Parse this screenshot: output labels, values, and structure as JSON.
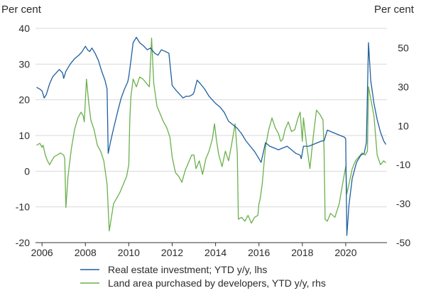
{
  "chart_data": {
    "type": "line",
    "left_axis": {
      "label": "Per cent",
      "ylim": [
        -20,
        40
      ],
      "ticks": [
        -20,
        -10,
        0,
        10,
        20,
        30,
        40
      ]
    },
    "right_axis": {
      "label": "Per cent",
      "ylim": [
        -50,
        60
      ],
      "ticks": [
        -50,
        -30,
        -10,
        10,
        30,
        50
      ]
    },
    "x_axis": {
      "xlim": [
        2005.7,
        2021.9
      ],
      "ticks": [
        "2006",
        "2008",
        "2010",
        "2012",
        "2014",
        "2016",
        "2018",
        "2020"
      ]
    },
    "grid": true,
    "legend_position": "bottom",
    "series": [
      {
        "name": "Real estate investment; YTD y/y, lhs",
        "axis": "left",
        "color": "#1f5f9e",
        "x": [
          2005.75,
          2005.9,
          2006.0,
          2006.1,
          2006.2,
          2006.35,
          2006.5,
          2006.65,
          2006.8,
          2006.95,
          2007.0,
          2007.1,
          2007.3,
          2007.5,
          2007.7,
          2007.85,
          2008.0,
          2008.1,
          2008.2,
          2008.3,
          2008.45,
          2008.6,
          2008.75,
          2008.9,
          2009.0,
          2009.05,
          2009.15,
          2009.3,
          2009.5,
          2009.65,
          2009.8,
          2009.95,
          2010.0,
          2010.1,
          2010.2,
          2010.35,
          2010.5,
          2010.7,
          2010.85,
          2011.0,
          2011.2,
          2011.35,
          2011.5,
          2011.7,
          2011.85,
          2012.0,
          2012.2,
          2012.35,
          2012.5,
          2012.65,
          2012.8,
          2012.95,
          2013.0,
          2013.15,
          2013.3,
          2013.5,
          2013.7,
          2013.85,
          2014.0,
          2014.2,
          2014.4,
          2014.6,
          2014.8,
          2015.0,
          2015.2,
          2015.4,
          2015.6,
          2015.8,
          2015.95,
          2016.1,
          2016.3,
          2016.5,
          2016.7,
          2016.9,
          2017.1,
          2017.3,
          2017.5,
          2017.7,
          2017.9,
          2017.95,
          2018.05,
          2018.3,
          2018.5,
          2018.7,
          2018.9,
          2019.0,
          2019.15,
          2019.35,
          2019.55,
          2019.75,
          2019.95,
          2020.0,
          2020.05,
          2020.15,
          2020.3,
          2020.5,
          2020.7,
          2020.85,
          2020.95,
          2021.05,
          2021.15,
          2021.3,
          2021.45,
          2021.6,
          2021.75,
          2021.85
        ],
        "values": [
          23.5,
          23.0,
          22.5,
          20.5,
          21.5,
          24.5,
          26.5,
          27.5,
          28.5,
          27.5,
          26.0,
          28.0,
          30.0,
          31.5,
          32.5,
          33.5,
          35.0,
          34.0,
          33.5,
          34.5,
          33.0,
          31.0,
          28.0,
          25.5,
          23.0,
          5.0,
          8.0,
          12.0,
          17.0,
          20.5,
          23.0,
          25.0,
          26.5,
          31.0,
          36.0,
          37.5,
          36.0,
          35.0,
          34.0,
          34.5,
          33.0,
          32.5,
          34.0,
          33.5,
          33.0,
          24.0,
          22.5,
          21.5,
          20.5,
          21.0,
          21.0,
          21.5,
          22.0,
          25.5,
          24.5,
          23.0,
          21.0,
          20.0,
          19.0,
          18.0,
          16.5,
          14.0,
          13.0,
          12.0,
          10.5,
          8.5,
          7.0,
          5.5,
          4.0,
          2.5,
          8.0,
          7.0,
          6.5,
          6.0,
          6.5,
          7.0,
          6.0,
          5.0,
          4.5,
          3.5,
          7.0,
          7.0,
          7.5,
          8.0,
          8.5,
          8.5,
          11.5,
          11.0,
          10.5,
          10.0,
          9.5,
          9.0,
          -18.0,
          -9.5,
          -2.0,
          2.5,
          4.5,
          5.0,
          8.0,
          36.0,
          25.5,
          19.0,
          14.5,
          11.0,
          8.5,
          7.5
        ]
      },
      {
        "name": "Land area purchased by developers, YTD y/y, rhs",
        "axis": "right",
        "color": "#6ab04c",
        "x": [
          2005.75,
          2005.9,
          2006.0,
          2006.05,
          2006.15,
          2006.25,
          2006.35,
          2006.45,
          2006.55,
          2006.7,
          2006.85,
          2007.0,
          2007.05,
          2007.1,
          2007.2,
          2007.35,
          2007.5,
          2007.65,
          2007.8,
          2007.9,
          2007.95,
          2008.05,
          2008.15,
          2008.25,
          2008.4,
          2008.55,
          2008.7,
          2008.85,
          2009.0,
          2009.1,
          2009.2,
          2009.3,
          2009.45,
          2009.6,
          2009.75,
          2009.9,
          2010.0,
          2010.05,
          2010.1,
          2010.2,
          2010.35,
          2010.5,
          2010.65,
          2010.8,
          2010.95,
          2011.05,
          2011.15,
          2011.3,
          2011.45,
          2011.6,
          2011.75,
          2011.9,
          2012.0,
          2012.15,
          2012.3,
          2012.45,
          2012.6,
          2012.75,
          2012.9,
          2013.0,
          2013.1,
          2013.25,
          2013.4,
          2013.55,
          2013.7,
          2013.85,
          2013.95,
          2014.05,
          2014.15,
          2014.3,
          2014.45,
          2014.6,
          2014.75,
          2014.9,
          2015.0,
          2015.05,
          2015.2,
          2015.35,
          2015.5,
          2015.65,
          2015.8,
          2015.95,
          2016.0,
          2016.05,
          2016.15,
          2016.3,
          2016.45,
          2016.6,
          2016.75,
          2016.9,
          2017.0,
          2017.1,
          2017.2,
          2017.35,
          2017.5,
          2017.65,
          2017.8,
          2017.9,
          2018.0,
          2018.05,
          2018.2,
          2018.35,
          2018.5,
          2018.65,
          2018.8,
          2018.95,
          2019.0,
          2019.05,
          2019.15,
          2019.3,
          2019.5,
          2019.7,
          2019.9,
          2020.0,
          2020.05,
          2020.15,
          2020.3,
          2020.45,
          2020.6,
          2020.75,
          2020.9,
          2021.0,
          2021.05,
          2021.15,
          2021.3,
          2021.45,
          2021.6,
          2021.75,
          2021.85
        ],
        "values": [
          0,
          1,
          -1,
          0,
          -5,
          -8,
          -10,
          -8,
          -6,
          -5,
          -4,
          -5,
          -7,
          -32,
          -16,
          -2,
          8,
          14,
          17,
          15,
          12,
          34,
          22,
          13,
          8,
          0,
          -3,
          -8,
          -20,
          -44,
          -37,
          -30,
          -27,
          -24,
          -20,
          -16,
          -10,
          14,
          25,
          34,
          30,
          35,
          34,
          32,
          30,
          55,
          32,
          20,
          16,
          12,
          9,
          4,
          -6,
          -14,
          -16,
          -19,
          -13,
          -9,
          -5,
          -5,
          -12,
          -8,
          -15,
          -7,
          -3,
          3,
          11,
          2,
          -5,
          -11,
          -3,
          -8,
          1,
          11,
          -4,
          -38,
          -37,
          -39,
          -36,
          -40,
          -37,
          -36,
          -30,
          -28,
          -20,
          -1,
          8,
          14,
          9,
          6,
          2,
          3,
          8,
          12,
          7,
          8,
          14,
          17,
          2,
          14,
          0,
          -12,
          4,
          18,
          16,
          13,
          -2,
          -38,
          -39,
          -35,
          -37,
          -30,
          -17,
          -11,
          -25,
          -20,
          -12,
          -8,
          -6,
          -4,
          -5,
          -3,
          30,
          24,
          15,
          -5,
          -10,
          -8,
          -9
        ]
      }
    ]
  }
}
